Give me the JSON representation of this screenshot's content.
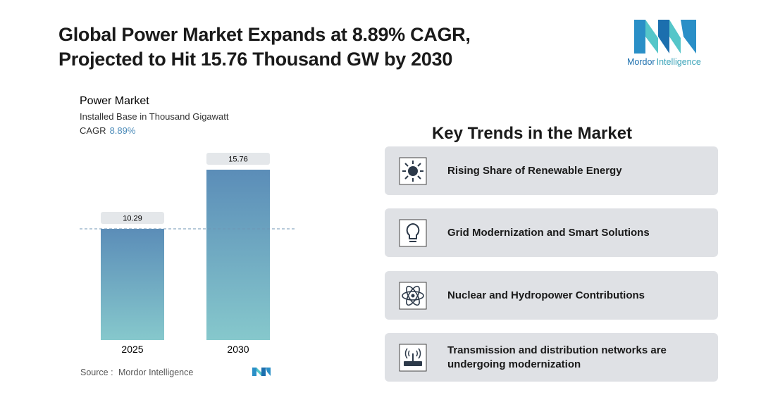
{
  "header": {
    "title_lines": [
      "Global Power Market Expands at 8.89% CAGR,",
      "Projected to Hit 15.76 Thousand GW by 2030"
    ],
    "logo": {
      "brand": "Mordor",
      "suffix": "Intelligence"
    }
  },
  "chart_data": {
    "type": "bar",
    "title": "Power Market",
    "subtitle": "Installed Base in Thousand Gigawatt",
    "cagr": {
      "label": "CAGR",
      "value": "8.89%"
    },
    "categories": [
      "2025",
      "2030"
    ],
    "values": [
      10.29,
      15.76
    ],
    "colors": [
      "#5b8db8",
      "#86c8cc"
    ]
  },
  "source": {
    "label": "Source :",
    "name": "Mordor Intelligence"
  },
  "key_trends": {
    "heading": "Key Trends in the Market",
    "items": [
      "Rising Share of Renewable Energy",
      "Grid Modernization and Smart Solutions",
      "Nuclear and Hydropower Contributions",
      "Transmission and distribution networks are undergoing modernization"
    ]
  }
}
